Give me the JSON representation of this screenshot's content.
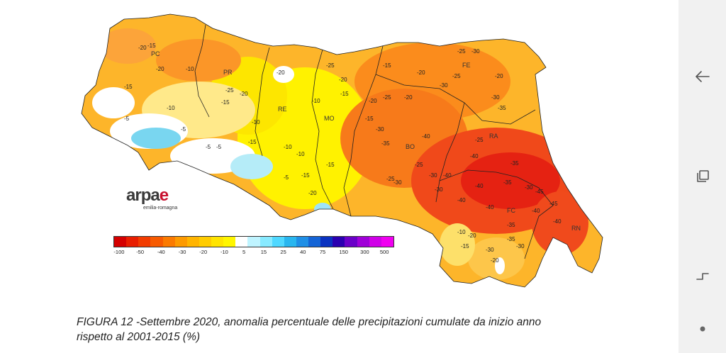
{
  "map": {
    "provinces": [
      "PC",
      "PR",
      "RE",
      "MO",
      "FE",
      "BO",
      "RA",
      "FC",
      "RN"
    ],
    "isolines": [
      "-20",
      "-15",
      "-20",
      "-10",
      "-15",
      "-25",
      "-20",
      "-15",
      "-10",
      "-5",
      "-5",
      "-10",
      "-15",
      "-20",
      "-25",
      "-20",
      "-10",
      "-10",
      "-15",
      "-10",
      "-5",
      "-15",
      "-5",
      "-15",
      "-20",
      "-20",
      "-15",
      "-25",
      "-20",
      "-15",
      "-20",
      "-25",
      "-30",
      "-25",
      "-20",
      "-30",
      "-35",
      "-30",
      "-40",
      "-30",
      "-25",
      "-40",
      "-35",
      "-40",
      "-30",
      "-25",
      "-35",
      "-40",
      "-45",
      "-40",
      "-30",
      "-35",
      "-30",
      "-40",
      "-40",
      "-45",
      "-25",
      "-30",
      "-35",
      "-40",
      "-10",
      "-15",
      "-20",
      "-30",
      "-35",
      "-30",
      "-20",
      "-5"
    ]
  },
  "logo": {
    "word_main": "arpa",
    "word_accent": "e",
    "subtitle": "emilia-romagna"
  },
  "legend": {
    "ticks": [
      "-100",
      "-50",
      "-40",
      "-30",
      "-20",
      "-10",
      "5",
      "15",
      "25",
      "40",
      "75",
      "150",
      "300",
      "500"
    ],
    "colors": [
      "#d40000",
      "#e81e00",
      "#f23c00",
      "#f75a00",
      "#fb7a00",
      "#fd9a00",
      "#ffb400",
      "#ffcc00",
      "#ffe400",
      "#fff600",
      "#ffffff",
      "#bff4ff",
      "#88eaff",
      "#4fd8ff",
      "#29b6ef",
      "#1f8fe6",
      "#1464d6",
      "#0a32c0",
      "#2a00b0",
      "#6a00c8",
      "#a000d8",
      "#d000e8",
      "#f000f0"
    ]
  },
  "caption": {
    "line1": "FIGURA 12 -Settembre 2020, anomalia percentuale delle precipitazioni cumulate da inizio anno",
    "line2": "rispetto al 2001-2015 (%)"
  },
  "navbar": {
    "back_icon": "back-arrow-icon",
    "recents_icon": "recents-icon",
    "home_icon": "home-icon",
    "dot_icon": "navigation-dot-icon"
  }
}
